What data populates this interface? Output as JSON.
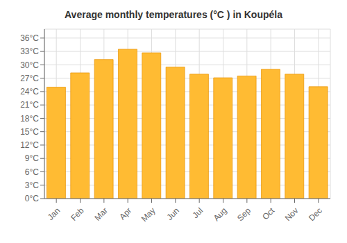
{
  "chart_data": {
    "type": "bar",
    "title": "Average monthly temperatures (°C ) in Koupéla",
    "categories": [
      "Jan",
      "Feb",
      "Mar",
      "Apr",
      "May",
      "Jun",
      "Jul",
      "Aug",
      "Sep",
      "Oct",
      "Nov",
      "Dec"
    ],
    "values": [
      25.0,
      28.2,
      31.2,
      33.5,
      32.7,
      29.5,
      27.9,
      27.1,
      27.5,
      29.0,
      27.9,
      25.1
    ],
    "color": "#FFBB33",
    "ylim": [
      0,
      38
    ],
    "yticks": [
      {
        "value": 0,
        "label": "0°C"
      },
      {
        "value": 3,
        "label": "3°C"
      },
      {
        "value": 6,
        "label": "6°C"
      },
      {
        "value": 9,
        "label": "9°C"
      },
      {
        "value": 12,
        "label": "12°C"
      },
      {
        "value": 15,
        "label": "15°C"
      },
      {
        "value": 18,
        "label": "18°C"
      },
      {
        "value": 21,
        "label": "21°C"
      },
      {
        "value": 24,
        "label": "24°C"
      },
      {
        "value": 27,
        "label": "27°C"
      },
      {
        "value": 30,
        "label": "30°C"
      },
      {
        "value": 33,
        "label": "33°C"
      },
      {
        "value": 36,
        "label": "36°C"
      }
    ],
    "grid": true
  }
}
